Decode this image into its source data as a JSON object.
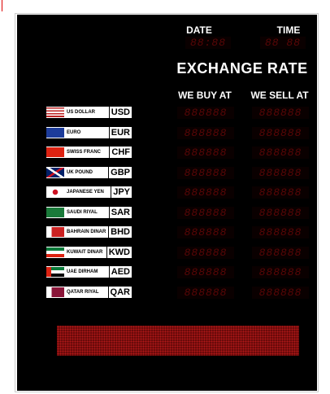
{
  "header": {
    "date_label": "DATE",
    "time_label": "TIME",
    "date_display": "88:88",
    "time_display": "88 88"
  },
  "title": "EXCHANGE RATE",
  "columns": {
    "buy": "WE BUY AT",
    "sell": "WE SELL AT"
  },
  "rows": [
    {
      "name": "US DOLLAR",
      "code": "USD",
      "buy": "888888",
      "sell": "888888"
    },
    {
      "name": "EURO",
      "code": "EUR",
      "buy": "888888",
      "sell": "888888"
    },
    {
      "name": "SWISS FRANC",
      "code": "CHF",
      "buy": "888888",
      "sell": "888888"
    },
    {
      "name": "UK POUND",
      "code": "GBP",
      "buy": "888888",
      "sell": "888888"
    },
    {
      "name": "JAPANESE YEN",
      "code": "JPY",
      "buy": "888888",
      "sell": "888888"
    },
    {
      "name": "SAUDI RIYAL",
      "code": "SAR",
      "buy": "888888",
      "sell": "888888"
    },
    {
      "name": "BAHRAIN DINAR",
      "code": "BHD",
      "buy": "888888",
      "sell": "888888"
    },
    {
      "name": "KUWAIT DINAR",
      "code": "KWD",
      "buy": "888888",
      "sell": "888888"
    },
    {
      "name": "UAE DIRHAM",
      "code": "AED",
      "buy": "888888",
      "sell": "888888"
    },
    {
      "name": "QATAR RIYAL",
      "code": "QAR",
      "buy": "888888",
      "sell": "888888"
    }
  ]
}
